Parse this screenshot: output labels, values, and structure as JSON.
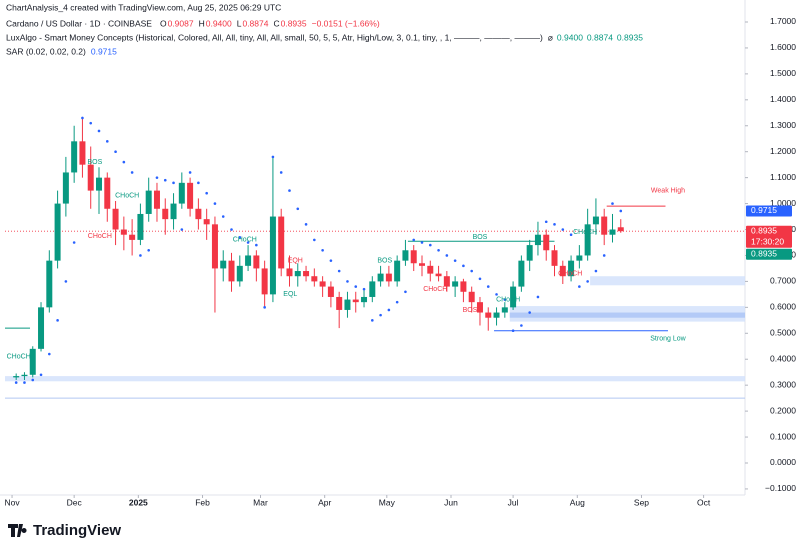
{
  "chart_data": {
    "type": "candlestick",
    "credit": "ChartAnalysis_4 created with TradingView.com, Aug 25, 2025 06:29 UTC",
    "title": "Cardano / US Dollar · 1D · COINBASE",
    "ohlc_names": [
      "O",
      "H",
      "L",
      "C"
    ],
    "ohlc_values": [
      0.9087,
      0.94,
      0.8874,
      0.8935
    ],
    "ohlc_value_labels": [
      "0.9087",
      "0.9400",
      "0.8874",
      "0.8935"
    ],
    "change": "−0.0151 (−1.66%)",
    "indicators": [
      {
        "name": "LuxAlgo - Smart Money Concepts (Historical, Colored, All, All, tiny, All, All, small, 50, 5, 5, Atr, High/Low, 3, 0.1, tiny, , 1, ———, ———, ———)",
        "symbol": "⌀",
        "values": [
          0.94,
          0.8874,
          0.8935
        ],
        "value_labels": [
          "0.9400",
          "0.8874",
          "0.8935"
        ],
        "color": "#089981"
      },
      {
        "name": "SAR (0.02, 0.02, 0.2)",
        "values": [
          0.9715
        ],
        "color": "#2962ff"
      }
    ],
    "logo": "TradingView",
    "up_color": "#089981",
    "down_color": "#f23645",
    "sar_color": "#2962ff",
    "open": [
      0.33,
      0.335,
      0.34,
      0.44,
      0.6,
      0.78,
      1.0,
      1.12,
      1.24,
      1.15,
      1.05,
      1.1,
      0.98,
      0.9,
      0.88,
      0.86,
      0.96,
      1.05,
      0.98,
      0.94,
      1.0,
      1.08,
      0.98,
      0.94,
      0.92,
      0.75,
      0.78,
      0.7,
      0.76,
      0.8,
      0.75,
      0.65,
      0.95,
      0.75,
      0.72,
      0.74,
      0.72,
      0.7,
      0.68,
      0.64,
      0.59,
      0.63,
      0.62,
      0.64,
      0.7,
      0.73,
      0.7,
      0.78,
      0.82,
      0.77,
      0.76,
      0.73,
      0.72,
      0.68,
      0.7,
      0.66,
      0.62,
      0.58,
      0.56,
      0.58,
      0.6,
      0.68,
      0.78,
      0.84,
      0.88,
      0.82,
      0.76,
      0.72,
      0.78,
      0.8,
      0.92,
      0.95,
      0.88,
      0.9087
    ],
    "high": [
      0.345,
      0.35,
      0.45,
      0.62,
      0.82,
      1.05,
      1.18,
      1.3,
      1.33,
      1.22,
      1.14,
      1.12,
      1.01,
      0.95,
      0.94,
      1.0,
      1.1,
      1.08,
      1.02,
      1.04,
      1.12,
      1.1,
      1.02,
      0.98,
      0.95,
      0.82,
      0.81,
      0.8,
      0.84,
      0.82,
      0.78,
      1.18,
      0.98,
      0.8,
      0.77,
      0.76,
      0.75,
      0.72,
      0.7,
      0.66,
      0.66,
      0.66,
      0.67,
      0.72,
      0.76,
      0.76,
      0.8,
      0.86,
      0.84,
      0.8,
      0.78,
      0.76,
      0.74,
      0.72,
      0.71,
      0.68,
      0.64,
      0.6,
      0.6,
      0.62,
      0.7,
      0.8,
      0.86,
      0.93,
      0.9,
      0.84,
      0.78,
      0.8,
      0.84,
      0.98,
      1.02,
      0.98,
      0.96,
      0.94
    ],
    "low": [
      0.32,
      0.32,
      0.33,
      0.43,
      0.58,
      0.75,
      0.95,
      1.08,
      1.1,
      0.98,
      0.96,
      0.93,
      0.84,
      0.82,
      0.8,
      0.84,
      0.93,
      0.93,
      0.88,
      0.9,
      0.98,
      0.95,
      0.9,
      0.86,
      0.58,
      0.7,
      0.66,
      0.68,
      0.74,
      0.7,
      0.6,
      0.62,
      0.72,
      0.68,
      0.68,
      0.7,
      0.68,
      0.64,
      0.6,
      0.52,
      0.56,
      0.58,
      0.6,
      0.62,
      0.68,
      0.68,
      0.68,
      0.76,
      0.74,
      0.72,
      0.7,
      0.7,
      0.66,
      0.64,
      0.62,
      0.58,
      0.53,
      0.51,
      0.53,
      0.56,
      0.59,
      0.66,
      0.74,
      0.8,
      0.78,
      0.72,
      0.69,
      0.7,
      0.75,
      0.78,
      0.88,
      0.84,
      0.85,
      0.8874
    ],
    "close": [
      0.335,
      0.34,
      0.44,
      0.6,
      0.78,
      1.0,
      1.12,
      1.24,
      1.15,
      1.05,
      1.1,
      0.98,
      0.9,
      0.88,
      0.86,
      0.96,
      1.05,
      0.98,
      0.94,
      1.0,
      1.08,
      0.98,
      0.94,
      0.92,
      0.75,
      0.78,
      0.7,
      0.76,
      0.8,
      0.75,
      0.65,
      0.95,
      0.75,
      0.72,
      0.74,
      0.72,
      0.7,
      0.68,
      0.64,
      0.59,
      0.63,
      0.62,
      0.64,
      0.7,
      0.73,
      0.7,
      0.78,
      0.82,
      0.77,
      0.76,
      0.73,
      0.72,
      0.68,
      0.7,
      0.66,
      0.62,
      0.58,
      0.56,
      0.58,
      0.6,
      0.68,
      0.78,
      0.84,
      0.88,
      0.82,
      0.76,
      0.72,
      0.78,
      0.8,
      0.92,
      0.95,
      0.88,
      0.9,
      0.8935
    ],
    "sar": [
      0.31,
      0.31,
      0.32,
      0.34,
      0.42,
      0.55,
      0.7,
      0.85,
      1.33,
      1.31,
      1.28,
      1.24,
      1.2,
      1.16,
      1.12,
      0.8,
      0.82,
      1.1,
      1.09,
      1.08,
      0.9,
      1.12,
      1.08,
      1.04,
      1.0,
      0.95,
      0.9,
      0.87,
      0.85,
      0.84,
      0.6,
      1.18,
      1.12,
      1.05,
      0.98,
      0.92,
      0.86,
      0.82,
      0.78,
      0.74,
      0.7,
      0.68,
      0.67,
      0.55,
      0.57,
      0.59,
      0.62,
      0.66,
      0.86,
      0.85,
      0.84,
      0.82,
      0.8,
      0.78,
      0.76,
      0.74,
      0.71,
      0.68,
      0.65,
      0.63,
      0.51,
      0.53,
      0.58,
      0.64,
      0.93,
      0.92,
      0.9,
      0.88,
      0.68,
      0.7,
      0.74,
      0.8,
      1.0,
      0.9715
    ],
    "xlim": [
      -1.35,
      88
    ],
    "ylim": [
      -0.1234,
      1.7848
    ],
    "xticks": [
      {
        "value": -0.5,
        "label": "Nov"
      },
      {
        "value": 7,
        "label": "Dec"
      },
      {
        "value": 14.75,
        "label": "2025"
      },
      {
        "value": 22.5,
        "label": "Feb"
      },
      {
        "value": 29.5,
        "label": "Mar"
      },
      {
        "value": 37.25,
        "label": "Apr"
      },
      {
        "value": 44.75,
        "label": "May"
      },
      {
        "value": 52.5,
        "label": "Jun"
      },
      {
        "value": 60,
        "label": "Jul"
      },
      {
        "value": 67.75,
        "label": "Aug"
      },
      {
        "value": 75.5,
        "label": "Sep"
      },
      {
        "value": 83,
        "label": "Oct"
      }
    ],
    "yticks": [
      {
        "value": 1.7,
        "label": "1.7000"
      },
      {
        "value": 1.6,
        "label": "1.6000"
      },
      {
        "value": 1.5,
        "label": "1.5000"
      },
      {
        "value": 1.4,
        "label": "1.4000"
      },
      {
        "value": 1.3,
        "label": "1.3000"
      },
      {
        "value": 1.2,
        "label": "1.2000"
      },
      {
        "value": 1.1,
        "label": "1.1000"
      },
      {
        "value": 1.0,
        "label": "1.0000"
      },
      {
        "value": 0.9,
        "label": "0.9000"
      },
      {
        "value": 0.8,
        "label": "0.8000"
      },
      {
        "value": 0.7,
        "label": "0.7000"
      },
      {
        "value": 0.6,
        "label": "0.6000"
      },
      {
        "value": 0.5,
        "label": "0.5000"
      },
      {
        "value": 0.4,
        "label": "0.4000"
      },
      {
        "value": 0.3,
        "label": "0.3000"
      },
      {
        "value": 0.2,
        "label": "0.2000"
      },
      {
        "value": 0.1,
        "label": "0.1000"
      },
      {
        "value": 0,
        "label": "0.0000"
      },
      {
        "value": -0.1,
        "label": "−0.1000"
      }
    ],
    "grid": false,
    "zones": [
      {
        "x": -1.35,
        "y": [
          0.315,
          0.335
        ],
        "color": "#d1e0fb"
      },
      {
        "x": 69.3,
        "y": [
          0.685,
          0.72
        ],
        "color": "#d1e0fb"
      },
      {
        "x": 59.6,
        "y": [
          0.545,
          0.605
        ],
        "color": "#d1e0fb"
      },
      {
        "x": 59.6,
        "y": [
          0.56,
          0.58
        ],
        "color": "#a9c3f5"
      }
    ],
    "levels": [
      {
        "x": [
          -1.35,
          88
        ],
        "y": 0.25,
        "color": "#b2c8f2"
      },
      {
        "x": [
          -1.35,
          1.67
        ],
        "y": 0.52,
        "color": "#089981"
      },
      {
        "x": [
          47.3,
          65
        ],
        "y": 0.855,
        "color": "#089981"
      },
      {
        "x": [
          71.3,
          78.4
        ],
        "y": 0.99,
        "color": "#f23645"
      },
      {
        "x": [
          57.7,
          78.7
        ],
        "y": 0.51,
        "color": "#2962ff"
      }
    ],
    "annotations": [
      {
        "text": "CHoCH",
        "x": 0.3,
        "y": 0.41,
        "color": "#089981"
      },
      {
        "text": "BOS",
        "x": 9.5,
        "y": 1.16,
        "color": "#089981"
      },
      {
        "text": "CHoCH",
        "x": 10.1,
        "y": 0.875,
        "color": "#f23645"
      },
      {
        "text": "CHoCH",
        "x": 13.4,
        "y": 1.03,
        "color": "#089981"
      },
      {
        "text": "CHoCH",
        "x": 27.6,
        "y": 0.86,
        "color": "#089981"
      },
      {
        "text": "EQH",
        "x": 33.7,
        "y": 0.78,
        "color": "#f23645"
      },
      {
        "text": "EQL",
        "x": 33.1,
        "y": 0.65,
        "color": "#089981"
      },
      {
        "text": "BOS",
        "x": 44.5,
        "y": 0.78,
        "color": "#089981"
      },
      {
        "text": "CHoCH",
        "x": 50.6,
        "y": 0.67,
        "color": "#f23645"
      },
      {
        "text": "BOS",
        "x": 54.8,
        "y": 0.59,
        "color": "#f23645"
      },
      {
        "text": "BOS",
        "x": 56,
        "y": 0.87,
        "color": "#089981"
      },
      {
        "text": "CHoCH",
        "x": 59.4,
        "y": 0.63,
        "color": "#089981"
      },
      {
        "text": "CHoCH",
        "x": 66.9,
        "y": 0.73,
        "color": "#f23645"
      },
      {
        "text": "CHoCH",
        "x": 68.7,
        "y": 0.89,
        "color": "#089981"
      },
      {
        "text": "Weak High",
        "x": 78.7,
        "y": 1.05,
        "color": "#f23645"
      },
      {
        "text": "Strong Low",
        "x": 78.7,
        "y": 0.48,
        "color": "#089981"
      }
    ],
    "current_price": 0.8935,
    "price_tags": [
      {
        "value": 0.9715,
        "color": "#2962ff"
      },
      {
        "value": 0.8935,
        "color": "#f23645",
        "countdown": "17:30:20"
      },
      {
        "value": 0.8935,
        "color": "#089981"
      }
    ]
  }
}
